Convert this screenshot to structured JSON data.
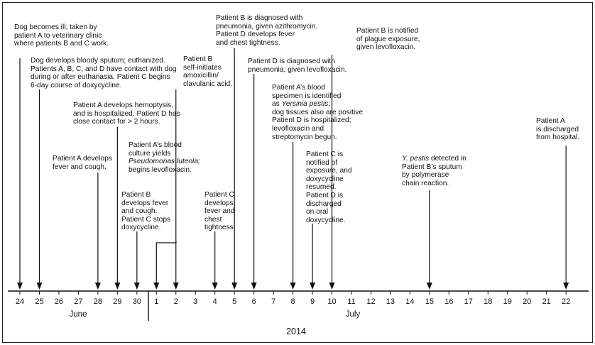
{
  "year": "2014",
  "months": [
    {
      "name": "June",
      "days": [
        "24",
        "25",
        "26",
        "27",
        "28",
        "29",
        "30"
      ]
    },
    {
      "name": "July",
      "days": [
        "1",
        "2",
        "3",
        "4",
        "5",
        "6",
        "7",
        "8",
        "9",
        "10",
        "11",
        "12",
        "13",
        "14",
        "15",
        "16",
        "17",
        "18",
        "19",
        "20",
        "21",
        "22"
      ]
    }
  ],
  "events": [
    {
      "id": "e1",
      "date": "June 24",
      "lines": [
        "Dog becomes ill; taken by",
        "patient A to veterinary clinic",
        "where patients B and C work."
      ]
    },
    {
      "id": "e2",
      "date": "June 25",
      "lines": [
        "Dog develops bloody sputum; euthanized.",
        "Patients A, B, C, and D have contact with dog",
        "during or after euthanasia. Patient C begins",
        "6-day course of doxycycline."
      ]
    },
    {
      "id": "e3",
      "date": "June 28",
      "lines": [
        "Patient A develops",
        "fever and cough."
      ]
    },
    {
      "id": "e4",
      "date": "June 29",
      "lines": [
        "Patient A develops hemoptysis,",
        "and is hospitalized. Patient D has",
        "close contact for > 2 hours."
      ]
    },
    {
      "id": "e5",
      "date": "June 30",
      "lines": [
        "Patient B",
        "develops fever",
        "and cough.",
        "Patient C stops",
        "doxycycline."
      ]
    },
    {
      "id": "e6",
      "date": "July 1",
      "lines": [
        "Patient A’s blood",
        "culture yields",
        "Pseudomonas luteola;",
        "begins levofloxacin."
      ]
    },
    {
      "id": "e7",
      "date": "July 2",
      "lines": [
        "Patient B",
        "self-initiates",
        "amoxicillin/",
        "clavulanic acid."
      ]
    },
    {
      "id": "e8",
      "date": "July 4",
      "lines": [
        "Patient C",
        "develops",
        "fever and",
        "chest",
        "tightness."
      ]
    },
    {
      "id": "e9",
      "date": "July 5",
      "lines": [
        "Patient B is diagnosed with",
        "pneumonia, given azithromycin.",
        "Patient D develops fever",
        "and chest tightness."
      ]
    },
    {
      "id": "e10",
      "date": "July 6",
      "lines": [
        "Patient D is diagnosed with",
        "pneumonia, given levofloxacin."
      ]
    },
    {
      "id": "e11",
      "date": "July 8",
      "lines": [
        "Patient A’s blood",
        "specimen is identified",
        "as Yersinia pestis;",
        "dog tissues also are positive",
        "Patient D is hospitalized;",
        "levofloxacin and",
        "streptomycin begun."
      ]
    },
    {
      "id": "e12",
      "date": "July 9",
      "lines": [
        "Patient C is",
        "notified of",
        "exposure, and",
        "doxycycline",
        "resumed.",
        "Patient D is",
        "discharged",
        "on oral",
        "doxycycline."
      ]
    },
    {
      "id": "e13",
      "date": "July 10",
      "lines": [
        "Patient B is notified",
        "of plague exposure,",
        "given levofloxacin."
      ]
    },
    {
      "id": "e14",
      "date": "July 15",
      "lines": [
        "Y. pestis detected in",
        "Patient B’s sputum",
        "by polymerase",
        "chain reaction."
      ]
    },
    {
      "id": "e15",
      "date": "July 22",
      "lines": [
        "Patient A",
        "is discharged",
        "from hospital."
      ]
    }
  ]
}
